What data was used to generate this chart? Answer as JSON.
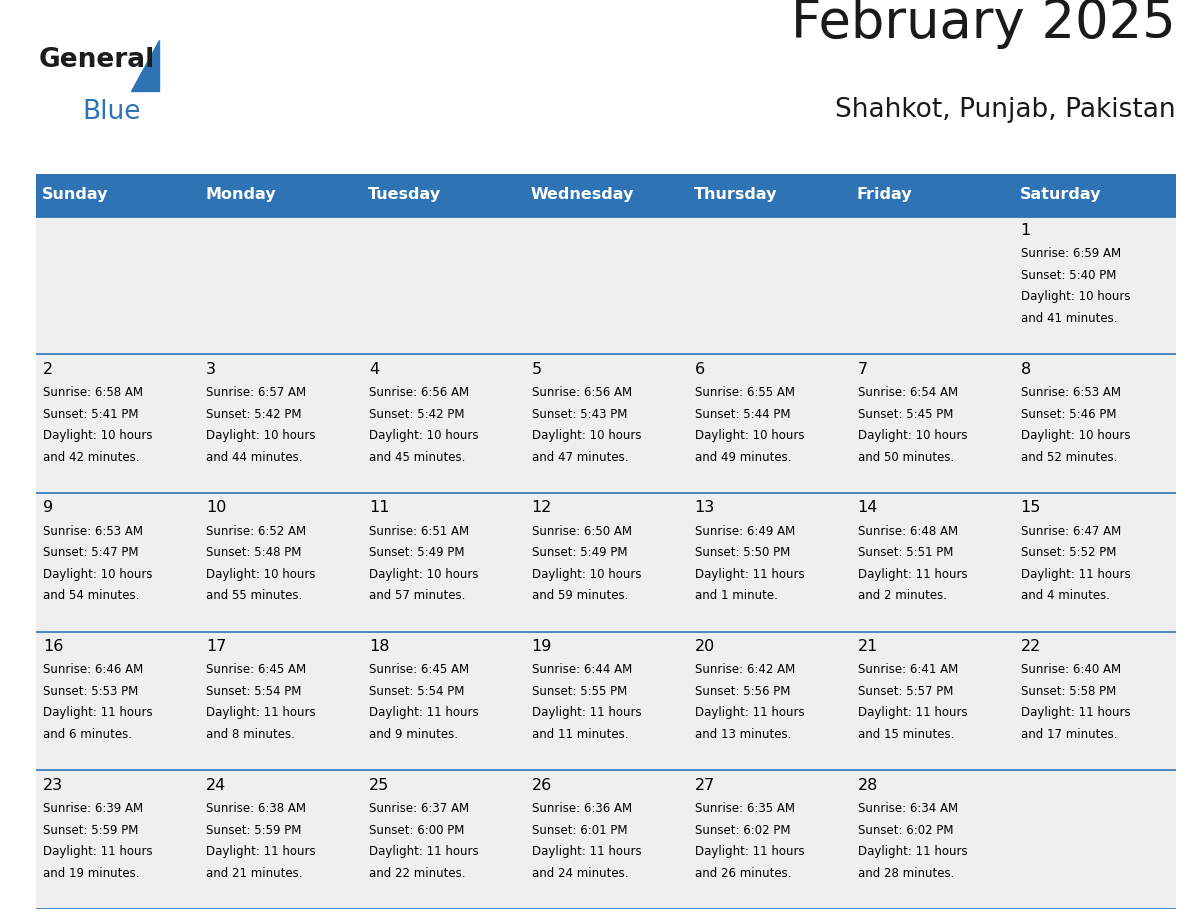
{
  "title": "February 2025",
  "subtitle": "Shahkot, Punjab, Pakistan",
  "header_color": "#2E74B5",
  "header_text_color": "#FFFFFF",
  "border_color": "#2E74B5",
  "day_names": [
    "Sunday",
    "Monday",
    "Tuesday",
    "Wednesday",
    "Thursday",
    "Friday",
    "Saturday"
  ],
  "background_color": "#FFFFFF",
  "cell_bg_color": "#EFEFEF",
  "text_color": "#000000",
  "title_color": "#1a1a1a",
  "days": [
    {
      "day": 1,
      "col": 6,
      "row": 0,
      "sunrise": "6:59 AM",
      "sunset": "5:40 PM",
      "daylight": "10 hours and 41 minutes."
    },
    {
      "day": 2,
      "col": 0,
      "row": 1,
      "sunrise": "6:58 AM",
      "sunset": "5:41 PM",
      "daylight": "10 hours and 42 minutes."
    },
    {
      "day": 3,
      "col": 1,
      "row": 1,
      "sunrise": "6:57 AM",
      "sunset": "5:42 PM",
      "daylight": "10 hours and 44 minutes."
    },
    {
      "day": 4,
      "col": 2,
      "row": 1,
      "sunrise": "6:56 AM",
      "sunset": "5:42 PM",
      "daylight": "10 hours and 45 minutes."
    },
    {
      "day": 5,
      "col": 3,
      "row": 1,
      "sunrise": "6:56 AM",
      "sunset": "5:43 PM",
      "daylight": "10 hours and 47 minutes."
    },
    {
      "day": 6,
      "col": 4,
      "row": 1,
      "sunrise": "6:55 AM",
      "sunset": "5:44 PM",
      "daylight": "10 hours and 49 minutes."
    },
    {
      "day": 7,
      "col": 5,
      "row": 1,
      "sunrise": "6:54 AM",
      "sunset": "5:45 PM",
      "daylight": "10 hours and 50 minutes."
    },
    {
      "day": 8,
      "col": 6,
      "row": 1,
      "sunrise": "6:53 AM",
      "sunset": "5:46 PM",
      "daylight": "10 hours and 52 minutes."
    },
    {
      "day": 9,
      "col": 0,
      "row": 2,
      "sunrise": "6:53 AM",
      "sunset": "5:47 PM",
      "daylight": "10 hours and 54 minutes."
    },
    {
      "day": 10,
      "col": 1,
      "row": 2,
      "sunrise": "6:52 AM",
      "sunset": "5:48 PM",
      "daylight": "10 hours and 55 minutes."
    },
    {
      "day": 11,
      "col": 2,
      "row": 2,
      "sunrise": "6:51 AM",
      "sunset": "5:49 PM",
      "daylight": "10 hours and 57 minutes."
    },
    {
      "day": 12,
      "col": 3,
      "row": 2,
      "sunrise": "6:50 AM",
      "sunset": "5:49 PM",
      "daylight": "10 hours and 59 minutes."
    },
    {
      "day": 13,
      "col": 4,
      "row": 2,
      "sunrise": "6:49 AM",
      "sunset": "5:50 PM",
      "daylight": "11 hours and 1 minute."
    },
    {
      "day": 14,
      "col": 5,
      "row": 2,
      "sunrise": "6:48 AM",
      "sunset": "5:51 PM",
      "daylight": "11 hours and 2 minutes."
    },
    {
      "day": 15,
      "col": 6,
      "row": 2,
      "sunrise": "6:47 AM",
      "sunset": "5:52 PM",
      "daylight": "11 hours and 4 minutes."
    },
    {
      "day": 16,
      "col": 0,
      "row": 3,
      "sunrise": "6:46 AM",
      "sunset": "5:53 PM",
      "daylight": "11 hours and 6 minutes."
    },
    {
      "day": 17,
      "col": 1,
      "row": 3,
      "sunrise": "6:45 AM",
      "sunset": "5:54 PM",
      "daylight": "11 hours and 8 minutes."
    },
    {
      "day": 18,
      "col": 2,
      "row": 3,
      "sunrise": "6:45 AM",
      "sunset": "5:54 PM",
      "daylight": "11 hours and 9 minutes."
    },
    {
      "day": 19,
      "col": 3,
      "row": 3,
      "sunrise": "6:44 AM",
      "sunset": "5:55 PM",
      "daylight": "11 hours and 11 minutes."
    },
    {
      "day": 20,
      "col": 4,
      "row": 3,
      "sunrise": "6:42 AM",
      "sunset": "5:56 PM",
      "daylight": "11 hours and 13 minutes."
    },
    {
      "day": 21,
      "col": 5,
      "row": 3,
      "sunrise": "6:41 AM",
      "sunset": "5:57 PM",
      "daylight": "11 hours and 15 minutes."
    },
    {
      "day": 22,
      "col": 6,
      "row": 3,
      "sunrise": "6:40 AM",
      "sunset": "5:58 PM",
      "daylight": "11 hours and 17 minutes."
    },
    {
      "day": 23,
      "col": 0,
      "row": 4,
      "sunrise": "6:39 AM",
      "sunset": "5:59 PM",
      "daylight": "11 hours and 19 minutes."
    },
    {
      "day": 24,
      "col": 1,
      "row": 4,
      "sunrise": "6:38 AM",
      "sunset": "5:59 PM",
      "daylight": "11 hours and 21 minutes."
    },
    {
      "day": 25,
      "col": 2,
      "row": 4,
      "sunrise": "6:37 AM",
      "sunset": "6:00 PM",
      "daylight": "11 hours and 22 minutes."
    },
    {
      "day": 26,
      "col": 3,
      "row": 4,
      "sunrise": "6:36 AM",
      "sunset": "6:01 PM",
      "daylight": "11 hours and 24 minutes."
    },
    {
      "day": 27,
      "col": 4,
      "row": 4,
      "sunrise": "6:35 AM",
      "sunset": "6:02 PM",
      "daylight": "11 hours and 26 minutes."
    },
    {
      "day": 28,
      "col": 5,
      "row": 4,
      "sunrise": "6:34 AM",
      "sunset": "6:02 PM",
      "daylight": "11 hours and 28 minutes."
    }
  ]
}
